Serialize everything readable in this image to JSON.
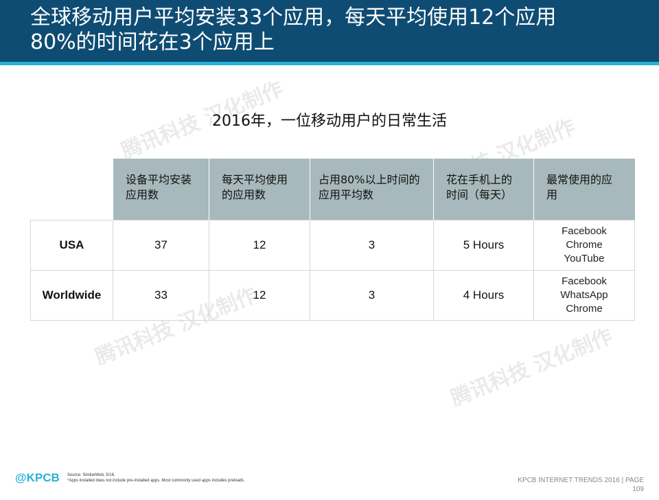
{
  "header": {
    "title_line1": "全球移动用户平均安装33个应用，每天平均使用12个应用",
    "title_line2": "80%的时间花在3个应用上"
  },
  "subtitle": "2016年，一位移动用户的日常生活",
  "watermark": "腾讯科技 汉化制作",
  "table": {
    "headers": [
      "设备平均安装应用数",
      "每天平均使用的应用数",
      "占用80%以上时间的应用平均数",
      "花在手机上的时间（每天）",
      "最常使用的应用"
    ],
    "rows": [
      {
        "label": "USA",
        "installed": "37",
        "daily_used": "12",
        "apps_80pct": "3",
        "time": "5 Hours",
        "top_apps": [
          "Facebook",
          "Chrome",
          "YouTube"
        ]
      },
      {
        "label": "Worldwide",
        "installed": "33",
        "daily_used": "12",
        "apps_80pct": "3",
        "time": "4 Hours",
        "top_apps": [
          "Facebook",
          "WhatsApp",
          "Chrome"
        ]
      }
    ]
  },
  "footer": {
    "logo": "@KPCB",
    "source": "Source: SimilarWeb, 5/16.",
    "note": "*Apps installed does not include pre-installed apps. Most commonly used apps includes preloads.",
    "brand": "KPCB INTERNET TRENDS 2016  |  PAGE",
    "page": "109"
  },
  "colors": {
    "header_bg": "#0f4c73",
    "header_accent": "#27b1d6",
    "table_header_bg": "#a7b9bc"
  }
}
